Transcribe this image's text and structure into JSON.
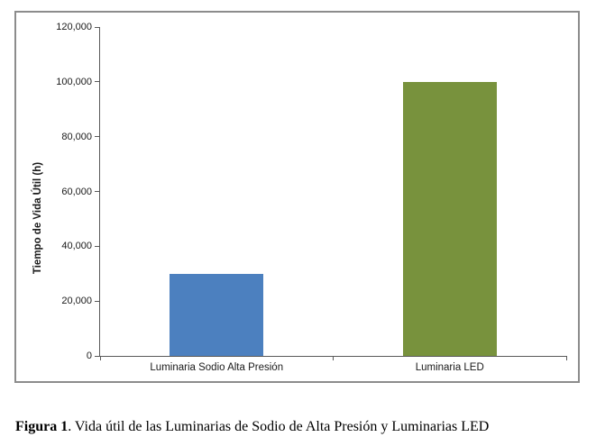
{
  "chart_data": {
    "type": "bar",
    "categories": [
      "Luminaria Sodio Alta Presión",
      "Luminaria LED"
    ],
    "values": [
      30000,
      100000
    ],
    "bar_colors": [
      "#4C80BF",
      "#78923D"
    ],
    "title": "",
    "xlabel": "",
    "ylabel": "Tiempo de Vida Útil (h)",
    "ylim": [
      0,
      120000
    ],
    "ytick_step": 20000,
    "ytick_labels": [
      "0",
      "20,000",
      "40,000",
      "60,000",
      "80,000",
      "100,000",
      "120,000"
    ],
    "grid": false,
    "legend": false
  },
  "caption": {
    "label": "Figura 1",
    "text": ". Vida útil de las Luminarias de Sodio de Alta Presión y Luminarias LED"
  },
  "colors": {
    "frame_border": "#8C8C8C",
    "axis": "#595959",
    "bar_sodium": "#4C80BF",
    "bar_led": "#78923D"
  }
}
